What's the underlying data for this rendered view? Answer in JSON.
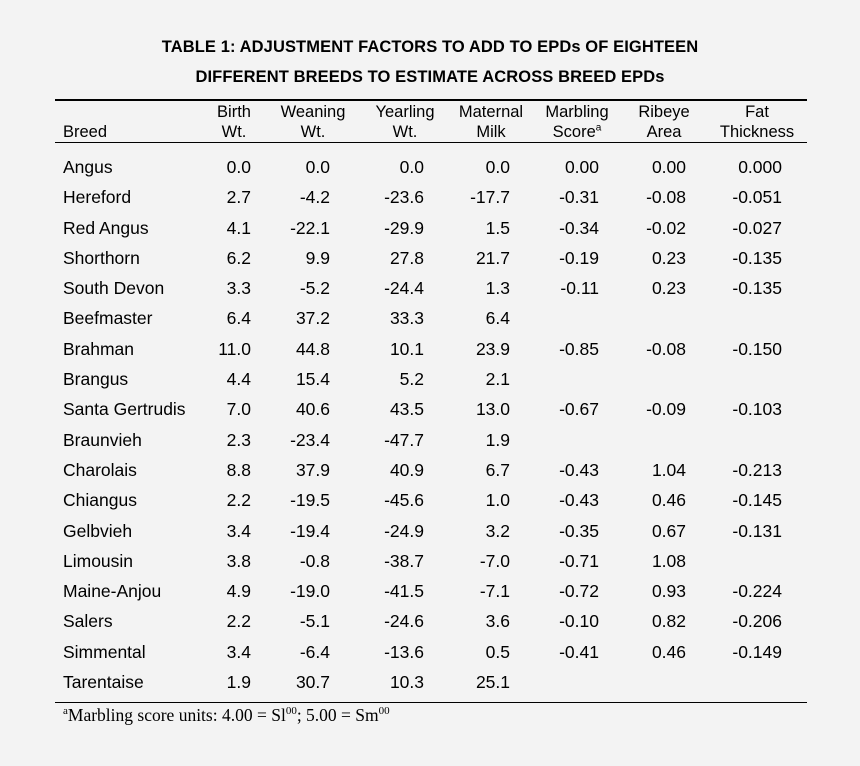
{
  "title": {
    "line1": "TABLE 1: ADJUSTMENT FACTORS TO ADD TO EPDs OF EIGHTEEN",
    "line2": "DIFFERENT BREEDS TO ESTIMATE ACROSS BREED EPDs"
  },
  "headers": {
    "breed": "Breed",
    "birth": [
      "Birth",
      "Wt."
    ],
    "weaning": [
      "Weaning",
      "Wt."
    ],
    "yearling": [
      "Yearling",
      "Wt."
    ],
    "maternal": [
      "Maternal",
      "Milk"
    ],
    "marbling": [
      "Marbling",
      "Score",
      "a"
    ],
    "ribeye": [
      "Ribeye",
      "Area"
    ],
    "fat": [
      "Fat",
      "Thickness"
    ]
  },
  "rows": [
    {
      "breed": "Angus",
      "birth": "0.0",
      "weaning": "0.0",
      "yearling": "0.0",
      "maternal": "0.0",
      "marbling": "0.00",
      "ribeye": "0.00",
      "fat": "0.000"
    },
    {
      "breed": "Hereford",
      "birth": "2.7",
      "weaning": "-4.2",
      "yearling": "-23.6",
      "maternal": "-17.7",
      "marbling": "-0.31",
      "ribeye": "-0.08",
      "fat": "-0.051"
    },
    {
      "breed": "Red Angus",
      "birth": "4.1",
      "weaning": "-22.1",
      "yearling": "-29.9",
      "maternal": "1.5",
      "marbling": "-0.34",
      "ribeye": "-0.02",
      "fat": "-0.027"
    },
    {
      "breed": "Shorthorn",
      "birth": "6.2",
      "weaning": "9.9",
      "yearling": "27.8",
      "maternal": "21.7",
      "marbling": "-0.19",
      "ribeye": "0.23",
      "fat": "-0.135"
    },
    {
      "breed": "South Devon",
      "birth": "3.3",
      "weaning": "-5.2",
      "yearling": "-24.4",
      "maternal": "1.3",
      "marbling": "-0.11",
      "ribeye": "0.23",
      "fat": "-0.135"
    },
    {
      "breed": "Beefmaster",
      "birth": "6.4",
      "weaning": "37.2",
      "yearling": "33.3",
      "maternal": "6.4",
      "marbling": "",
      "ribeye": "",
      "fat": ""
    },
    {
      "breed": "Brahman",
      "birth": "11.0",
      "weaning": "44.8",
      "yearling": "10.1",
      "maternal": "23.9",
      "marbling": "-0.85",
      "ribeye": "-0.08",
      "fat": "-0.150"
    },
    {
      "breed": "Brangus",
      "birth": "4.4",
      "weaning": "15.4",
      "yearling": "5.2",
      "maternal": "2.1",
      "marbling": "",
      "ribeye": "",
      "fat": ""
    },
    {
      "breed": "Santa Gertrudis",
      "birth": "7.0",
      "weaning": "40.6",
      "yearling": "43.5",
      "maternal": "13.0",
      "marbling": "-0.67",
      "ribeye": "-0.09",
      "fat": "-0.103"
    },
    {
      "breed": "Braunvieh",
      "birth": "2.3",
      "weaning": "-23.4",
      "yearling": "-47.7",
      "maternal": "1.9",
      "marbling": "",
      "ribeye": "",
      "fat": ""
    },
    {
      "breed": "Charolais",
      "birth": "8.8",
      "weaning": "37.9",
      "yearling": "40.9",
      "maternal": "6.7",
      "marbling": "-0.43",
      "ribeye": "1.04",
      "fat": "-0.213"
    },
    {
      "breed": "Chiangus",
      "birth": "2.2",
      "weaning": "-19.5",
      "yearling": "-45.6",
      "maternal": "1.0",
      "marbling": "-0.43",
      "ribeye": "0.46",
      "fat": "-0.145"
    },
    {
      "breed": "Gelbvieh",
      "birth": "3.4",
      "weaning": "-19.4",
      "yearling": "-24.9",
      "maternal": "3.2",
      "marbling": "-0.35",
      "ribeye": "0.67",
      "fat": "-0.131"
    },
    {
      "breed": "Limousin",
      "birth": "3.8",
      "weaning": "-0.8",
      "yearling": "-38.7",
      "maternal": "-7.0",
      "marbling": "-0.71",
      "ribeye": "1.08",
      "fat": ""
    },
    {
      "breed": "Maine-Anjou",
      "birth": "4.9",
      "weaning": "-19.0",
      "yearling": "-41.5",
      "maternal": "-7.1",
      "marbling": "-0.72",
      "ribeye": "0.93",
      "fat": "-0.224"
    },
    {
      "breed": "Salers",
      "birth": "2.2",
      "weaning": "-5.1",
      "yearling": "-24.6",
      "maternal": "3.6",
      "marbling": "-0.10",
      "ribeye": "0.82",
      "fat": "-0.206"
    },
    {
      "breed": "Simmental",
      "birth": "3.4",
      "weaning": "-6.4",
      "yearling": "-13.6",
      "maternal": "0.5",
      "marbling": "-0.41",
      "ribeye": "0.46",
      "fat": "-0.149"
    },
    {
      "breed": "Tarentaise",
      "birth": "1.9",
      "weaning": "30.7",
      "yearling": "10.3",
      "maternal": "25.1",
      "marbling": "",
      "ribeye": "",
      "fat": ""
    }
  ],
  "footnote": {
    "marker": "a",
    "text_before": "Marbling score units: 4.00 = Sl",
    "sup1": "00",
    "text_middle": "; 5.00 = Sm",
    "sup2": "00"
  }
}
